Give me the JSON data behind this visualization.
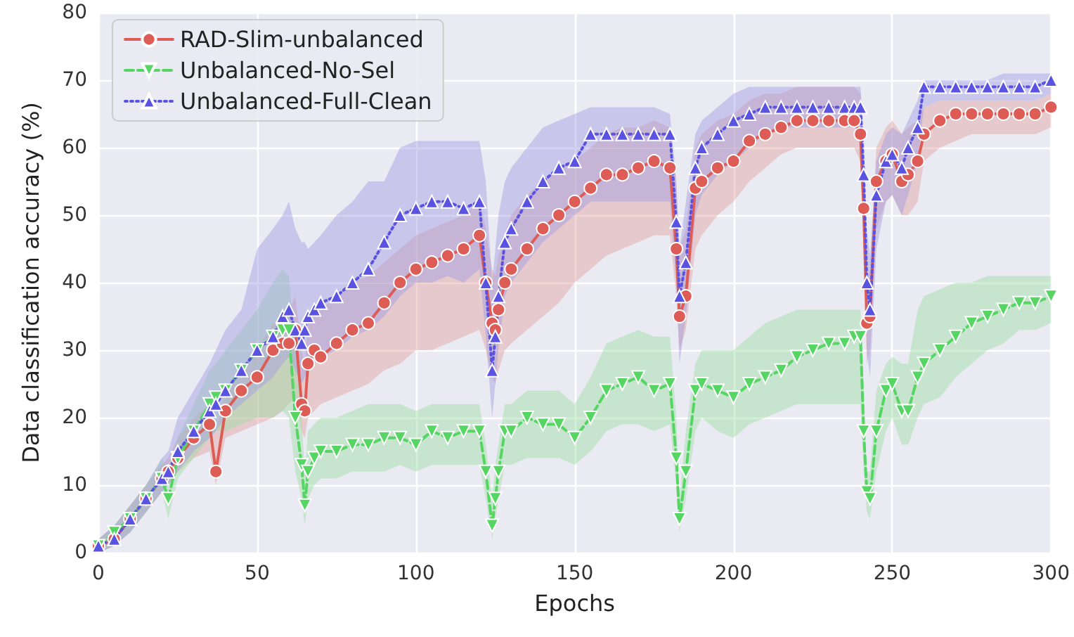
{
  "chart_data": {
    "type": "line",
    "xlabel": "Epochs",
    "ylabel": "Data classification accuracy (%)",
    "xlim": [
      0,
      300
    ],
    "xticks": [
      0,
      50,
      100,
      150,
      200,
      250,
      300
    ],
    "ylim": [
      0,
      80
    ],
    "yticks": [
      0,
      10,
      20,
      30,
      40,
      50,
      60,
      70,
      80
    ],
    "grid": true,
    "legend": "top left",
    "x": [
      0,
      5,
      10,
      15,
      20,
      22,
      25,
      30,
      35,
      37,
      40,
      45,
      50,
      55,
      58,
      60,
      62,
      64,
      65,
      66,
      68,
      70,
      75,
      80,
      85,
      90,
      95,
      100,
      105,
      110,
      115,
      120,
      122,
      124,
      125,
      126,
      128,
      130,
      135,
      140,
      145,
      150,
      155,
      160,
      165,
      170,
      175,
      180,
      182,
      183,
      185,
      188,
      190,
      195,
      200,
      205,
      210,
      215,
      220,
      225,
      230,
      235,
      238,
      240,
      241,
      242,
      243,
      245,
      248,
      250,
      253,
      255,
      258,
      260,
      265,
      270,
      275,
      280,
      285,
      290,
      295,
      300
    ],
    "series": [
      {
        "name": "RAD-Slim-unbalanced",
        "color": "#dd5c56",
        "marker": "circle",
        "line_style": "solid",
        "values": [
          1,
          2,
          5,
          8,
          11,
          12,
          14,
          17,
          19,
          12,
          21,
          24,
          26,
          30,
          31,
          31,
          33,
          22,
          21,
          28,
          30,
          29,
          31,
          33,
          34,
          37,
          40,
          42,
          43,
          44,
          45,
          47,
          40,
          34,
          33,
          36,
          40,
          42,
          45,
          48,
          50,
          52,
          54,
          56,
          56,
          57,
          58,
          57,
          45,
          35,
          38,
          54,
          55,
          57,
          58,
          61,
          62,
          63,
          64,
          64,
          64,
          64,
          64,
          62,
          51,
          34,
          35,
          55,
          58,
          59,
          55,
          56,
          58,
          62,
          64,
          65,
          65,
          65,
          65,
          65,
          65,
          66
        ],
        "lower": [
          0,
          1,
          3,
          6,
          9,
          10,
          12,
          14,
          15,
          10,
          17,
          18,
          19,
          20,
          21,
          22,
          23,
          18,
          17,
          20,
          21,
          22,
          23,
          24,
          25,
          27,
          28,
          30,
          30,
          31,
          32,
          33,
          30,
          26,
          25,
          27,
          30,
          31,
          33,
          35,
          37,
          40,
          42,
          44,
          45,
          46,
          47,
          47,
          38,
          30,
          33,
          45,
          47,
          50,
          52,
          55,
          57,
          59,
          60,
          60,
          60,
          60,
          60,
          58,
          45,
          28,
          30,
          48,
          52,
          53,
          50,
          50,
          52,
          58,
          60,
          61,
          62,
          62,
          62,
          62,
          62,
          63
        ],
        "upper": [
          2,
          4,
          7,
          10,
          13,
          14,
          17,
          20,
          22,
          18,
          24,
          27,
          30,
          34,
          35,
          36,
          38,
          30,
          28,
          34,
          36,
          36,
          38,
          40,
          41,
          43,
          45,
          47,
          48,
          49,
          50,
          52,
          48,
          42,
          41,
          44,
          47,
          50,
          53,
          55,
          57,
          58,
          60,
          62,
          63,
          63,
          64,
          63,
          55,
          45,
          48,
          60,
          62,
          64,
          65,
          67,
          68,
          68,
          69,
          69,
          69,
          69,
          69,
          68,
          58,
          40,
          42,
          60,
          63,
          64,
          62,
          63,
          64,
          66,
          67,
          67,
          67,
          67,
          67,
          67,
          67,
          68
        ]
      },
      {
        "name": "Unbalanced-No-Sel",
        "color": "#55d662",
        "marker": "triangle_down",
        "line_style": "dashed",
        "values": [
          1,
          3,
          5,
          8,
          11,
          8,
          14,
          18,
          22,
          23,
          24,
          27,
          30,
          32,
          33,
          33,
          20,
          13,
          7,
          12,
          14,
          15,
          15,
          16,
          16,
          17,
          17,
          16,
          18,
          17,
          18,
          18,
          12,
          4,
          8,
          12,
          18,
          18,
          20,
          19,
          19,
          17,
          20,
          24,
          25,
          26,
          24,
          25,
          14,
          5,
          12,
          24,
          25,
          24,
          23,
          25,
          26,
          27,
          29,
          30,
          31,
          31,
          32,
          32,
          18,
          9,
          8,
          18,
          24,
          25,
          21,
          21,
          26,
          28,
          30,
          32,
          34,
          35,
          36,
          37,
          37,
          38
        ],
        "lower": [
          0,
          1,
          3,
          6,
          9,
          5,
          11,
          14,
          17,
          18,
          18,
          19,
          20,
          20,
          21,
          20,
          12,
          8,
          4,
          8,
          10,
          11,
          11,
          12,
          12,
          12,
          13,
          12,
          13,
          13,
          13,
          13,
          8,
          2,
          5,
          8,
          13,
          13,
          14,
          14,
          14,
          13,
          15,
          18,
          19,
          19,
          18,
          19,
          10,
          3,
          8,
          18,
          20,
          18,
          17,
          19,
          20,
          21,
          22,
          22,
          22,
          22,
          22,
          22,
          12,
          6,
          5,
          12,
          18,
          20,
          16,
          16,
          20,
          22,
          23,
          26,
          28,
          30,
          31,
          33,
          33,
          34
        ],
        "upper": [
          2,
          4,
          7,
          10,
          14,
          12,
          17,
          22,
          27,
          28,
          30,
          33,
          36,
          40,
          42,
          41,
          30,
          20,
          12,
          18,
          19,
          20,
          20,
          21,
          22,
          22,
          22,
          21,
          22,
          22,
          22,
          22,
          16,
          8,
          13,
          16,
          22,
          22,
          24,
          24,
          24,
          22,
          26,
          31,
          32,
          33,
          32,
          32,
          20,
          8,
          18,
          28,
          30,
          30,
          30,
          32,
          34,
          35,
          36,
          36,
          36,
          36,
          36,
          36,
          25,
          12,
          12,
          24,
          28,
          29,
          28,
          28,
          36,
          38,
          39,
          40,
          40,
          41,
          41,
          41,
          41,
          41
        ]
      },
      {
        "name": "Unbalanced-Full-Clean",
        "color": "#5a52e0",
        "marker": "triangle",
        "line_style": "dotted",
        "values": [
          1,
          2,
          5,
          8,
          11,
          12,
          15,
          18,
          21,
          22,
          24,
          27,
          30,
          32,
          35,
          36,
          33,
          31,
          33,
          35,
          36,
          37,
          38,
          40,
          42,
          46,
          50,
          51,
          52,
          52,
          51,
          52,
          40,
          27,
          32,
          38,
          46,
          48,
          52,
          55,
          57,
          58,
          62,
          62,
          62,
          62,
          62,
          62,
          49,
          38,
          43,
          57,
          60,
          62,
          64,
          65,
          66,
          66,
          66,
          66,
          66,
          66,
          66,
          66,
          56,
          40,
          36,
          53,
          58,
          59,
          57,
          60,
          63,
          69,
          69,
          69,
          69,
          69,
          69,
          69,
          69,
          70
        ],
        "lower": [
          0,
          1,
          3,
          6,
          9,
          10,
          12,
          15,
          17,
          18,
          20,
          22,
          24,
          26,
          28,
          29,
          27,
          25,
          26,
          27,
          28,
          29,
          30,
          32,
          33,
          35,
          38,
          40,
          40,
          41,
          40,
          42,
          32,
          20,
          25,
          30,
          38,
          40,
          43,
          46,
          48,
          50,
          52,
          52,
          52,
          52,
          52,
          52,
          40,
          28,
          35,
          50,
          53,
          56,
          58,
          60,
          62,
          63,
          63,
          63,
          63,
          63,
          63,
          62,
          48,
          30,
          26,
          45,
          52,
          53,
          50,
          53,
          58,
          66,
          67,
          67,
          67,
          67,
          67,
          67,
          67,
          68
        ],
        "upper": [
          2,
          4,
          7,
          10,
          14,
          15,
          20,
          24,
          28,
          30,
          33,
          36,
          45,
          48,
          50,
          52,
          48,
          46,
          46,
          45,
          46,
          47,
          50,
          52,
          55,
          55,
          60,
          61,
          61,
          61,
          61,
          61,
          55,
          40,
          45,
          50,
          55,
          57,
          60,
          63,
          64,
          65,
          66,
          66,
          66,
          66,
          66,
          65,
          55,
          45,
          52,
          62,
          64,
          66,
          68,
          69,
          69,
          69,
          69,
          69,
          69,
          69,
          69,
          69,
          62,
          48,
          44,
          58,
          62,
          63,
          62,
          64,
          67,
          70,
          70,
          70,
          70,
          70,
          71,
          71,
          71,
          71
        ]
      }
    ]
  }
}
